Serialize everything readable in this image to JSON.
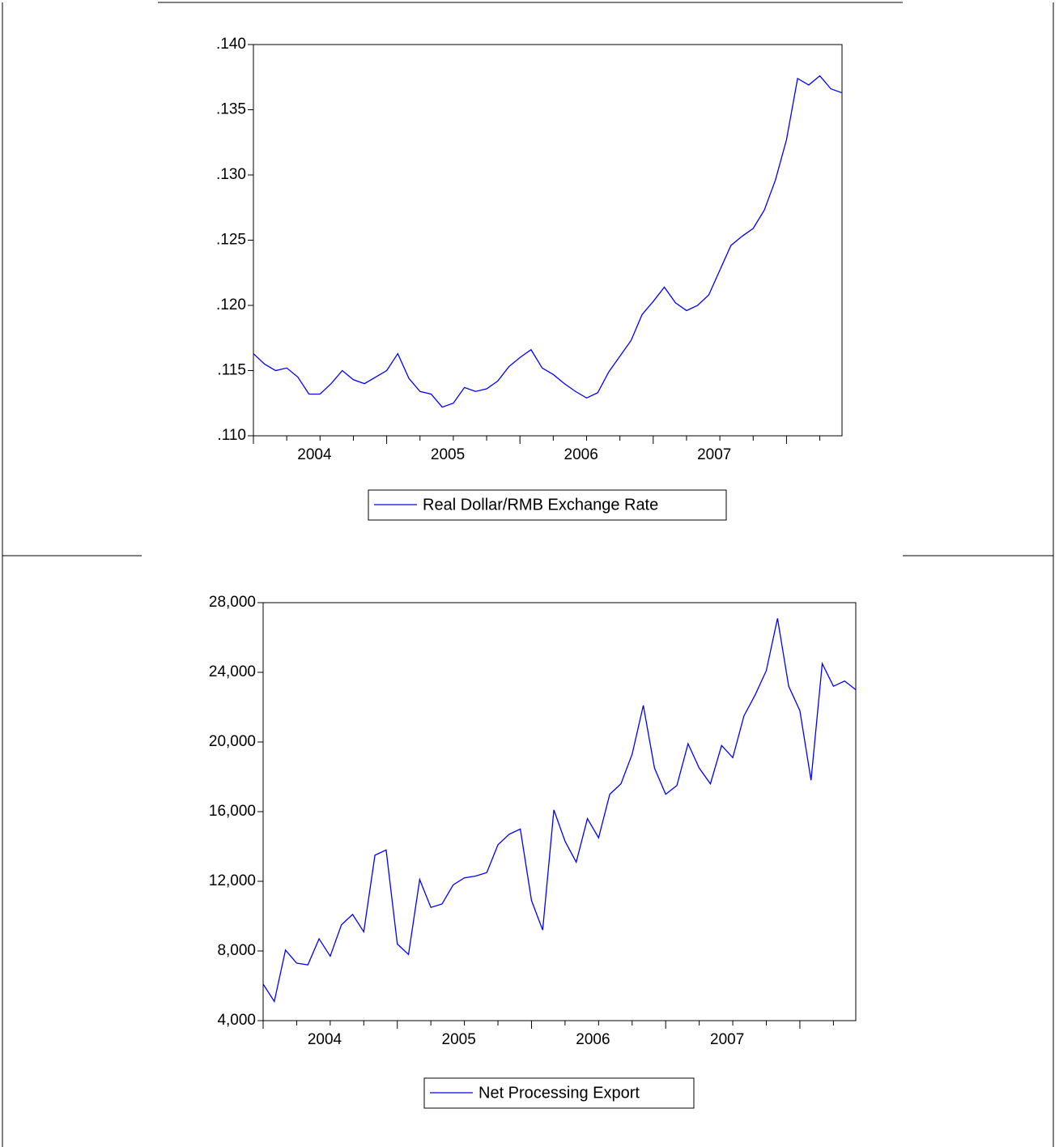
{
  "chart_data": [
    {
      "type": "line",
      "categories": [
        null,
        null,
        null,
        null,
        null,
        "2004",
        null,
        null,
        null,
        null,
        null,
        null,
        null,
        null,
        null,
        null,
        null,
        "2005",
        null,
        null,
        null,
        null,
        null,
        null,
        null,
        null,
        null,
        null,
        null,
        "2006",
        null,
        null,
        null,
        null,
        null,
        null,
        null,
        null,
        null,
        null,
        null,
        "2007",
        null,
        null,
        null,
        null,
        null,
        null,
        null,
        null,
        null,
        null,
        null,
        null
      ],
      "series": [
        {
          "name": "Real Dollar/RMB Exchange Rate",
          "color": "#0000ff",
          "values": [
            0.1163,
            0.1155,
            0.115,
            0.1152,
            0.1145,
            0.1132,
            0.1132,
            0.114,
            0.115,
            0.1143,
            0.114,
            0.1145,
            0.115,
            0.1163,
            0.1144,
            0.1134,
            0.1132,
            0.1122,
            0.1125,
            0.1137,
            0.1134,
            0.1136,
            0.1142,
            0.1153,
            0.116,
            0.1166,
            0.1152,
            0.1147,
            0.114,
            0.1134,
            0.1129,
            0.1133,
            0.1149,
            0.1161,
            0.1173,
            0.1193,
            0.1203,
            0.1214,
            0.1202,
            0.1196,
            0.12,
            0.1208,
            0.1227,
            0.1246,
            0.1253,
            0.1259,
            0.1273,
            0.1296,
            0.1327,
            0.1374,
            0.1369,
            0.1376,
            0.1366,
            0.1363
          ]
        }
      ],
      "ylim": [
        0.11,
        0.14
      ],
      "yticks": [
        {
          "value": 0.11,
          "label": ".110"
        },
        {
          "value": 0.115,
          "label": ".115"
        },
        {
          "value": 0.12,
          "label": ".120"
        },
        {
          "value": 0.125,
          "label": ".125"
        },
        {
          "value": 0.13,
          "label": ".130"
        },
        {
          "value": 0.135,
          "label": ".135"
        },
        {
          "value": 0.14,
          "label": ".140"
        }
      ],
      "grid": false,
      "legend": "bottom"
    },
    {
      "type": "line",
      "categories": [
        null,
        null,
        null,
        null,
        null,
        "2004",
        null,
        null,
        null,
        null,
        null,
        null,
        null,
        null,
        null,
        null,
        null,
        "2005",
        null,
        null,
        null,
        null,
        null,
        null,
        null,
        null,
        null,
        null,
        null,
        "2006",
        null,
        null,
        null,
        null,
        null,
        null,
        null,
        null,
        null,
        null,
        null,
        "2007",
        null,
        null,
        null,
        null,
        null,
        null,
        null,
        null,
        null,
        null,
        null,
        null
      ],
      "series": [
        {
          "name": "Net Processing Export",
          "color": "#0000ff",
          "values": [
            6100,
            5100,
            8050,
            7300,
            7200,
            8700,
            7700,
            9500,
            10100,
            9100,
            13500,
            13800,
            8400,
            7800,
            12100,
            10500,
            10700,
            11800,
            12200,
            12300,
            12500,
            14100,
            14700,
            15000,
            10900,
            9200,
            16100,
            14300,
            13100,
            15600,
            14500,
            17000,
            17600,
            19300,
            22100,
            18500,
            17000,
            17500,
            19900,
            18500,
            17600,
            19800,
            19100,
            21500,
            22700,
            24100,
            27100,
            23200,
            21800,
            17800,
            24500,
            23200,
            23500,
            23000
          ]
        }
      ],
      "ylim": [
        4000,
        28000
      ],
      "yticks": [
        {
          "value": 4000,
          "label": "4,000"
        },
        {
          "value": 8000,
          "label": "8,000"
        },
        {
          "value": 12000,
          "label": "12,000"
        },
        {
          "value": 16000,
          "label": "16,000"
        },
        {
          "value": 20000,
          "label": "20,000"
        },
        {
          "value": 24000,
          "label": "24,000"
        },
        {
          "value": 28000,
          "label": "28,000"
        }
      ],
      "grid": false,
      "legend": "bottom"
    }
  ]
}
